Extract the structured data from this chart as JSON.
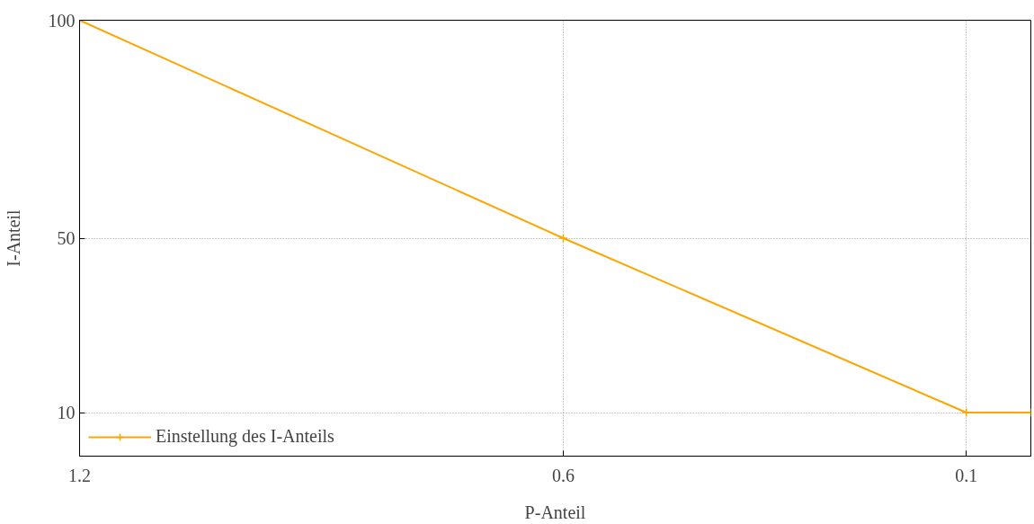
{
  "chart_data": {
    "type": "line",
    "xlabel": "P-Anteil",
    "ylabel": "I-Anteil",
    "x": [
      1.2,
      0.6,
      0.1,
      0.02
    ],
    "series": [
      {
        "name": "Einstellung des I-Anteils",
        "color": "#ffa500",
        "values": [
          100,
          50,
          10,
          10
        ]
      }
    ],
    "xlim": [
      1.2,
      0.02
    ],
    "xticks": [
      1.2,
      0.6,
      0.1
    ],
    "ylim": [
      0,
      100
    ],
    "yticks": [
      100,
      50,
      10
    ],
    "grid": true,
    "legend": "bottom left",
    "marker": "cross",
    "line_style": "solid"
  }
}
